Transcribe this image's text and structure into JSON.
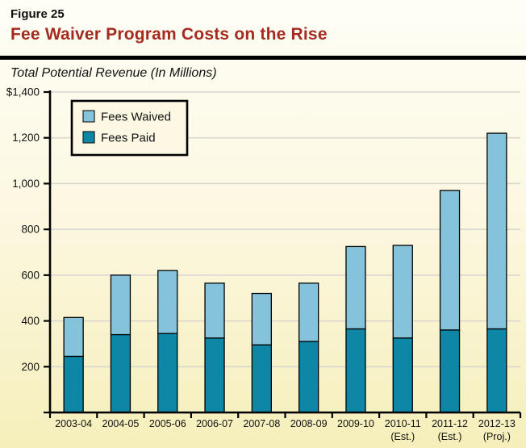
{
  "header": {
    "figure_label": "Figure 25",
    "title": "Fee Waiver Program Costs on the Rise",
    "subtitle": "Total Potential Revenue (In Millions)"
  },
  "colors": {
    "title": "#A52B20",
    "fees_paid": "#0E86A6",
    "fees_waived": "#85C3DB",
    "bar_border": "#000000",
    "axis": "#000000",
    "gridline": "#D9D7CE",
    "legend_background": "#FCF8E3",
    "legend_border": "#000000",
    "background_top": "#FFFEF6",
    "background_bottom": "#F6EFBB"
  },
  "legend": {
    "items": [
      {
        "key": "fees-waived",
        "label": "Fees Waived",
        "color": "#85C3DB"
      },
      {
        "key": "fees-paid",
        "label": "Fees Paid",
        "color": "#0E86A6"
      }
    ]
  },
  "chart_data": {
    "type": "bar",
    "stacked": true,
    "title": "Fee Waiver Program Costs on the Rise",
    "subtitle": "Total Potential Revenue (In Millions)",
    "unit": "millions of dollars",
    "categories": [
      "2003-04",
      "2004-05",
      "2005-06",
      "2006-07",
      "2007-08",
      "2008-09",
      "2009-10",
      "2010-11",
      "2011-12",
      "2012-13"
    ],
    "category_notes": [
      "",
      "",
      "",
      "",
      "",
      "",
      "",
      "(Est.)",
      "(Est.)",
      "(Proj.)"
    ],
    "series": [
      {
        "name": "Fees Paid",
        "color": "#0E86A6",
        "values": [
          245,
          340,
          345,
          325,
          295,
          310,
          365,
          325,
          360,
          365
        ]
      },
      {
        "name": "Fees Waived",
        "color": "#85C3DB",
        "values": [
          170,
          260,
          275,
          240,
          225,
          255,
          360,
          405,
          610,
          855
        ]
      }
    ],
    "ylim": [
      0,
      1400
    ],
    "y_ticks": [
      {
        "value": 0,
        "label": ""
      },
      {
        "value": 200,
        "label": "200"
      },
      {
        "value": 400,
        "label": "400"
      },
      {
        "value": 600,
        "label": "600"
      },
      {
        "value": 800,
        "label": "800"
      },
      {
        "value": 1000,
        "label": "1,000"
      },
      {
        "value": 1200,
        "label": "1,200"
      },
      {
        "value": 1400,
        "label": "$1,400"
      }
    ],
    "grid": true,
    "legend_position": "top-left"
  }
}
